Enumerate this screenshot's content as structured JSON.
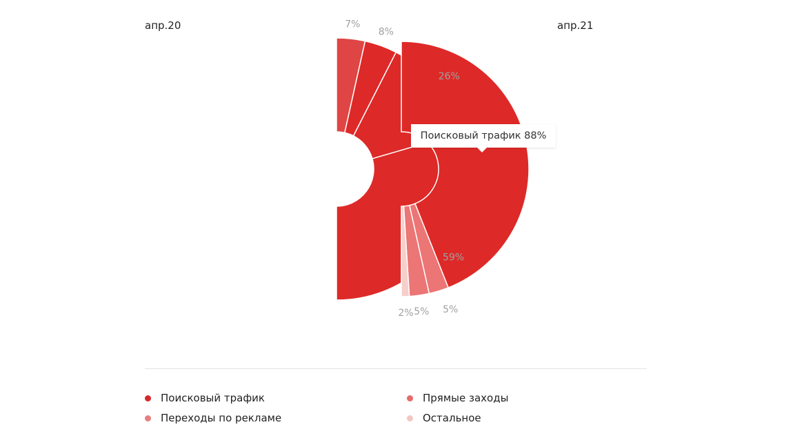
{
  "chart_data": {
    "type": "pie",
    "variant": "donut-half-comparison",
    "periods": [
      {
        "name": "апр.20",
        "side": "left",
        "slices": [
          {
            "category": "Поисковый трафик",
            "value": 59,
            "label": "59%"
          },
          {
            "category": "Переходы по рекламе",
            "value": 26,
            "label": "26%"
          },
          {
            "category": "Прямые заходы",
            "value": 8,
            "label": "8%"
          },
          {
            "category": "Остальное",
            "value": 7,
            "label": "7%"
          }
        ]
      },
      {
        "name": "апр.21",
        "side": "right",
        "slices": [
          {
            "category": "Поисковый трафик",
            "value": 88,
            "label": ""
          },
          {
            "category": "Прямые заходы",
            "value": 5,
            "label": "5%"
          },
          {
            "category": "Переходы по рекламе",
            "value": 5,
            "label": "5%"
          },
          {
            "category": "Остальное",
            "value": 2,
            "label": "2%"
          }
        ]
      }
    ],
    "tooltip": {
      "text": "Поисковый трафик 88%"
    },
    "legend": [
      {
        "label": "Поисковый трафик",
        "color": "#d42a2a"
      },
      {
        "label": "Прямые заходы",
        "color": "#e86a6a"
      },
      {
        "label": "Переходы по рекламе",
        "color": "#e87e7e"
      },
      {
        "label": "Остальное",
        "color": "#f3c6c2"
      }
    ],
    "legend_position": "bottom",
    "colors": {
      "left": {
        "Поисковый трафик": "#dd2a28",
        "Переходы по рекламе": "#dd2a28",
        "Прямые заходы": "#dd2a28",
        "Остальное": "#e04545"
      },
      "right": {
        "Поисковый трафик": "#dd2a28",
        "Прямые заходы": "#ec7575",
        "Переходы по рекламе": "#ec7575",
        "Остальное": "#f6cfcb"
      },
      "label": "#a0a0a0"
    }
  }
}
